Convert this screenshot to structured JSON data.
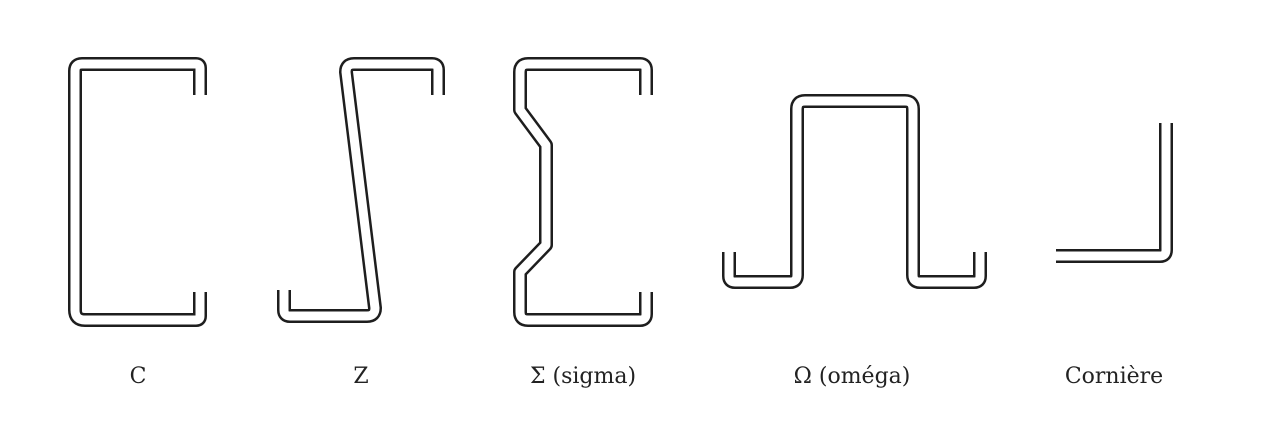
{
  "profiles": [
    {
      "name": "C",
      "label": "C"
    },
    {
      "name": "Z",
      "label": "Z"
    },
    {
      "name": "sigma",
      "label": "Σ (sigma)"
    },
    {
      "name": "omega",
      "label": "Ω (oméga)"
    },
    {
      "name": "corniere",
      "label": "Cornière"
    }
  ],
  "colors": {
    "stroke": "#1e1e1e",
    "fill": "#ffffff",
    "text": "#222222"
  }
}
